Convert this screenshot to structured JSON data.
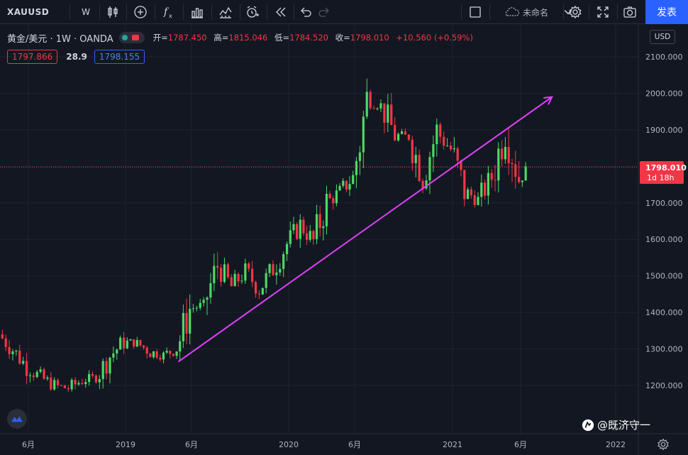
{
  "toolbar": {
    "symbol": "XAUUSD",
    "interval": "W",
    "layout_name": "未命名",
    "publish_label": "发表",
    "icons": [
      "candles-icon",
      "add-indicator-icon",
      "fx-icon",
      "chart-type-icon",
      "templates-icon",
      "alert-icon",
      "replay-icon",
      "undo-icon",
      "redo-icon",
      "fullscreen-window-icon",
      "cloud-icon",
      "chevron-down-icon",
      "settings-icon",
      "fullscreen-icon",
      "camera-icon"
    ]
  },
  "legend": {
    "title": "黄金/美元 · 1W · OANDA",
    "open_label": "开=",
    "open": "1787.450",
    "high_label": "高=",
    "high": "1815.046",
    "low_label": "低=",
    "low": "1784.520",
    "close_label": "收=",
    "close": "1798.010",
    "change": "+10.560 (+0.59%)"
  },
  "quote": {
    "bid": "1797.866",
    "spread": "28.9",
    "ask": "1798.155"
  },
  "currency_button": "USD",
  "last_price": {
    "value": "1798.010",
    "countdown": "1d 18h"
  },
  "watermark": "@既济守一",
  "colors": {
    "background": "#131722",
    "up": "#26a69a",
    "up_candle": "#4cd964",
    "down": "#f23645",
    "trendline": "#e040fb",
    "publish": "#2962ff"
  },
  "chart_data": {
    "type": "candlestick",
    "symbol": "XAUUSD",
    "interval": "1W",
    "y_ticks": [
      1200,
      1300,
      1400,
      1500,
      1600,
      1700,
      1800,
      1900,
      2000,
      2100
    ],
    "y_tick_labels": [
      "1200.000",
      "1300.000",
      "1400.000",
      "1500.000",
      "1600.000",
      "1700.000",
      "1800.000",
      "1900.000",
      "2000.000",
      "2100.000"
    ],
    "x_ticks": [
      "6月",
      "2019",
      "6月",
      "2020",
      "6月",
      "2021",
      "6月",
      "2022"
    ],
    "x_tick_dates": [
      "2018-06",
      "2019-01",
      "2019-06",
      "2020-01",
      "2020-06",
      "2021-01",
      "2021-06",
      "2022-01"
    ],
    "x_range": [
      "2018-04",
      "2022-02"
    ],
    "ylim": [
      1100,
      2170
    ],
    "series": [
      {
        "date": "2018-04",
        "close": 1340
      },
      {
        "date": "2018-05",
        "close": 1298
      },
      {
        "date": "2018-06",
        "close": 1252
      },
      {
        "date": "2018-07",
        "close": 1222
      },
      {
        "date": "2018-08",
        "close": 1200
      },
      {
        "date": "2018-09",
        "close": 1192
      },
      {
        "date": "2018-10",
        "close": 1214
      },
      {
        "date": "2018-11",
        "close": 1222
      },
      {
        "date": "2018-12",
        "close": 1280
      },
      {
        "date": "2019-01",
        "close": 1320
      },
      {
        "date": "2019-02",
        "close": 1316
      },
      {
        "date": "2019-03",
        "close": 1292
      },
      {
        "date": "2019-04",
        "close": 1283
      },
      {
        "date": "2019-05",
        "close": 1300
      },
      {
        "date": "2019-06",
        "close": 1410
      },
      {
        "date": "2019-07",
        "close": 1420
      },
      {
        "date": "2019-08",
        "close": 1528
      },
      {
        "date": "2019-09",
        "close": 1470
      },
      {
        "date": "2019-10",
        "close": 1512
      },
      {
        "date": "2019-11",
        "close": 1464
      },
      {
        "date": "2019-12",
        "close": 1520
      },
      {
        "date": "2020-01",
        "close": 1588
      },
      {
        "date": "2020-02",
        "close": 1640
      },
      {
        "date": "2020-03",
        "close": 1596
      },
      {
        "date": "2020-04",
        "close": 1700
      },
      {
        "date": "2020-05",
        "close": 1730
      },
      {
        "date": "2020-06",
        "close": 1770
      },
      {
        "date": "2020-07",
        "close": 1975
      },
      {
        "date": "2020-08",
        "close": 1968
      },
      {
        "date": "2020-09",
        "close": 1887
      },
      {
        "date": "2020-10",
        "close": 1880
      },
      {
        "date": "2020-11",
        "close": 1776
      },
      {
        "date": "2020-12",
        "close": 1895
      },
      {
        "date": "2021-01",
        "close": 1847
      },
      {
        "date": "2021-02",
        "close": 1734
      },
      {
        "date": "2021-03",
        "close": 1708
      },
      {
        "date": "2021-04",
        "close": 1769
      },
      {
        "date": "2021-05",
        "close": 1905
      },
      {
        "date": "2021-06",
        "close": 1770
      },
      {
        "date": "2021-07",
        "close": 1798
      }
    ],
    "trendline": {
      "from": {
        "date": "2019-05",
        "price": 1265
      },
      "to": {
        "date": "2021-08",
        "price": 1990
      }
    },
    "last_price": 1798.01,
    "grid": true
  }
}
